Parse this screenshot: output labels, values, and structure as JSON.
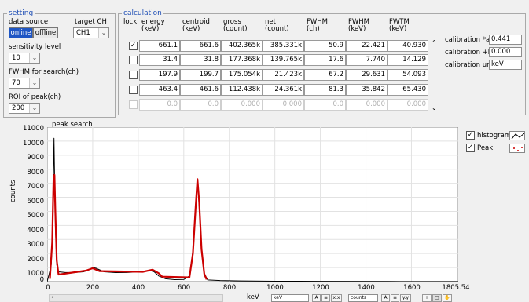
{
  "setting": {
    "legend": "setting",
    "data_source_label": "data source",
    "online_label": "online",
    "offline_label": "offline",
    "target_ch_label": "target CH",
    "target_ch_value": "CH1",
    "sensitivity_label": "sensitivity level",
    "sensitivity_value": "10",
    "fwhm_label": "FWHM for search(ch)",
    "fwhm_value": "70",
    "roi_label": "ROI of peak(ch)",
    "roi_value": "200"
  },
  "calculation": {
    "legend": "calculation",
    "headers": {
      "lock": "lock",
      "energy": "energy\n(keV)",
      "centroid": "centroid\n(keV)",
      "gross": "gross\n(count)",
      "net": "net\n(count)",
      "fwhm_ch": "FWHM\n(ch)",
      "fwhm_kev": "FWHM\n(keV)",
      "fwtm": "FWTM\n(keV)"
    },
    "rows": [
      {
        "locked": true,
        "energy": "661.1",
        "centroid": "661.6",
        "gross": "402.365k",
        "net": "385.331k",
        "fwhm_ch": "50.9",
        "fwhm_kev": "22.421",
        "fwtm": "40.930"
      },
      {
        "locked": false,
        "energy": "31.4",
        "centroid": "31.8",
        "gross": "177.368k",
        "net": "139.765k",
        "fwhm_ch": "17.6",
        "fwhm_kev": "7.740",
        "fwtm": "14.129"
      },
      {
        "locked": false,
        "energy": "197.9",
        "centroid": "199.7",
        "gross": "175.054k",
        "net": "21.423k",
        "fwhm_ch": "67.2",
        "fwhm_kev": "29.631",
        "fwtm": "54.093"
      },
      {
        "locked": false,
        "energy": "463.4",
        "centroid": "461.6",
        "gross": "112.438k",
        "net": "24.361k",
        "fwhm_ch": "81.3",
        "fwhm_kev": "35.842",
        "fwtm": "65.430"
      },
      {
        "locked": false,
        "energy": "0.0",
        "centroid": "0.0",
        "gross": "0.000",
        "net": "0.000",
        "fwhm_ch": "0.0",
        "fwhm_kev": "0.000",
        "fwtm": "0.000"
      }
    ],
    "calibration_a_label": "calibration *a",
    "calibration_a_value": "0.441",
    "calibration_b_label": "calibration +b",
    "calibration_b_value": "0.000",
    "calibration_unit_label": "calibration unit",
    "calibration_unit_value": "keV"
  },
  "plot": {
    "title": "peak search",
    "legend_histogram": "histogram",
    "legend_peak": "Peak",
    "x_unit_label": "keV",
    "x_scale_field": "keV",
    "y_scale_field": "counts",
    "colors": {
      "histogram": "#000000",
      "peak": "#cc0000"
    }
  },
  "chart_data": {
    "type": "line",
    "title": "peak search",
    "xlabel": "keV",
    "ylabel": "counts",
    "xlim": [
      0,
      1805.54
    ],
    "ylim": [
      0,
      11000
    ],
    "x_ticks": [
      "0",
      "200",
      "400",
      "600",
      "800",
      "1000",
      "1200",
      "1400",
      "1600",
      "1805.54"
    ],
    "y_ticks": [
      "0",
      "1000",
      "2000",
      "3000",
      "4000",
      "5000",
      "6000",
      "7000",
      "8000",
      "9000",
      "10000",
      "11000"
    ],
    "grid": true,
    "legend_position": "top-right",
    "series": [
      {
        "name": "histogram",
        "color": "#000000",
        "points": [
          [
            0,
            0
          ],
          [
            8,
            500
          ],
          [
            18,
            1200
          ],
          [
            24,
            3500
          ],
          [
            28,
            8000
          ],
          [
            30,
            10200
          ],
          [
            33,
            7000
          ],
          [
            37,
            3500
          ],
          [
            42,
            1200
          ],
          [
            50,
            700
          ],
          [
            80,
            650
          ],
          [
            120,
            650
          ],
          [
            160,
            700
          ],
          [
            185,
            850
          ],
          [
            200,
            1000
          ],
          [
            215,
            950
          ],
          [
            250,
            700
          ],
          [
            300,
            640
          ],
          [
            350,
            650
          ],
          [
            400,
            690
          ],
          [
            430,
            740
          ],
          [
            455,
            820
          ],
          [
            470,
            700
          ],
          [
            490,
            400
          ],
          [
            520,
            200
          ],
          [
            560,
            140
          ],
          [
            600,
            150
          ],
          [
            625,
            400
          ],
          [
            640,
            2200
          ],
          [
            652,
            5500
          ],
          [
            660,
            7200
          ],
          [
            668,
            5800
          ],
          [
            678,
            2500
          ],
          [
            690,
            600
          ],
          [
            705,
            120
          ],
          [
            760,
            80
          ],
          [
            850,
            50
          ],
          [
            1000,
            30
          ],
          [
            1200,
            20
          ],
          [
            1500,
            10
          ],
          [
            1805,
            5
          ]
        ]
      },
      {
        "name": "Peak",
        "color": "#cc0000",
        "points": [
          [
            12,
            200
          ],
          [
            22,
            2800
          ],
          [
            28,
            7300
          ],
          [
            32,
            7600
          ],
          [
            36,
            5000
          ],
          [
            42,
            1500
          ],
          [
            50,
            500
          ],
          [
            170,
            780
          ],
          [
            200,
            950
          ],
          [
            230,
            750
          ],
          [
            420,
            700
          ],
          [
            463,
            850
          ],
          [
            490,
            600
          ],
          [
            505,
            350
          ],
          [
            625,
            300
          ],
          [
            640,
            2000
          ],
          [
            652,
            5300
          ],
          [
            660,
            7300
          ],
          [
            668,
            5600
          ],
          [
            678,
            2300
          ],
          [
            690,
            550
          ],
          [
            700,
            150
          ]
        ]
      }
    ]
  }
}
